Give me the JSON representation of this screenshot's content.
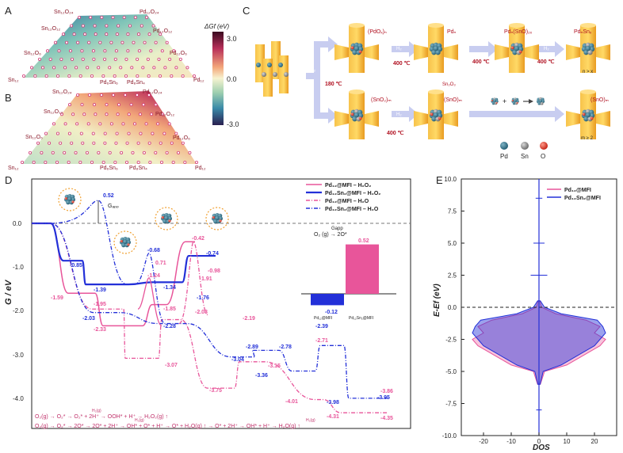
{
  "panels": {
    "A": "A",
    "B": "B",
    "C": "C",
    "D": "D",
    "E": "E"
  },
  "colors": {
    "pink": "#e8559a",
    "blue": "#2330d8",
    "pd": "#2f6f86",
    "sn": "#8a8a8a",
    "o": "#e03a2a",
    "rod": "#f4b030",
    "arrow": "#c8cdf0"
  },
  "triangleA": {
    "labels": [
      "Sn₁₂O₂₄",
      "Pd₁₂O₂₄",
      "Sn₁₂O₁₂",
      "Pd₁₂O₁₂",
      "Sn₁₂O₆",
      "Pd₁₂O₆",
      "Sn₁₂",
      "Pd₆Sn₆",
      "Pd₈Sn₄",
      "Pd₁₂"
    ]
  },
  "triangleB": {
    "labels": [
      "Sn₁₂O₂₄",
      "Pd₁₂O₂₄",
      "Sn₁₂O₁₂",
      "Pd₁₂O₁₂",
      "Sn₁₂O₆",
      "Pd₁₂O₆",
      "Sn₁₂",
      "Pd₆Sn₆",
      "Pd₈Sn₄",
      "Pd₁₂"
    ]
  },
  "colorbar": {
    "title": "ΔGf (eV)",
    "ticks": [
      "3.0",
      "0.0",
      "-3.0"
    ]
  },
  "schemeC": {
    "o2": "O₂",
    "t180": "180 ℃",
    "t400a": "400 ℃",
    "t400b": "400 ℃",
    "t400c": "400 ℃",
    "t400d": "400 ℃",
    "h2a": "H₂",
    "h2b": "H₂",
    "h2c": "H₂",
    "pdo": "(PdOₓ)ₙ",
    "pdn": "Pdₙ",
    "pdsno": "Pdₙ(SnO)₂ₓ",
    "pdnsnx": "PdₙSnₓ",
    "ngx": "n > x",
    "sno2": "(SnO₂)ₘ",
    "snom": "(SnO)ₘ",
    "snom2": "(SnO)ₘ",
    "sn2o3": "Sn₂O₃",
    "mge": "m ≥ 2",
    "legend": [
      "Pd",
      "Sn",
      "O"
    ]
  },
  "chart_data": [
    {
      "type": "line",
      "title": "",
      "xlabel": "",
      "ylabel": "G / eV",
      "ylim": [
        -4.5,
        0.5
      ],
      "yticks": [
        "0.0",
        "-1.0",
        "-2.0",
        "-3.0",
        "-4.0"
      ],
      "series": [
        {
          "name": "Pd₁₂@MFI – H₂O₂",
          "style": "solid",
          "color": "#e8559a",
          "values": [
            0,
            -1.59,
            -2.33,
            -1.85,
            -0.42
          ]
        },
        {
          "name": "Pd₁₂Sn₂@MFI – H₂O₂",
          "style": "solid",
          "color": "#2330d8",
          "values": [
            0,
            -0.85,
            -1.39,
            -1.34,
            -0.74
          ]
        },
        {
          "name": "Pd₁₂@MFI – H₂O",
          "style": "dashdot",
          "color": "#e8559a",
          "values": [
            0,
            -1.95,
            -3.07,
            -3.75,
            -3.15,
            -4.31,
            -4.35
          ]
        },
        {
          "name": "Pd₁₂Sn₂@MFI – H₂O",
          "style": "dashdot",
          "color": "#2330d8",
          "values": [
            0,
            -2.03,
            -2.28,
            -3.04,
            -3.36,
            -3.98,
            -3.95
          ]
        }
      ],
      "annotations": [
        "0.52",
        "-0.85",
        "-1.39",
        "-2.03",
        "-1.59",
        "-1.95",
        "-2.33",
        "-0.68",
        "0.71",
        "-1.24",
        "-1.34",
        "-1.85",
        "-2.28",
        "-1.76",
        "-2.08",
        "-0.42",
        "-0.74",
        "-0.98",
        "1.91",
        "-3.07",
        "-3.75",
        "-2.19",
        "-3.04",
        "-2.89",
        "-3.36",
        "-3.15",
        "-2.78",
        "-2.39",
        "-2.71",
        "-4.01",
        "-3.98",
        "-4.31",
        "-3.86",
        "-3.95",
        "-4.35"
      ],
      "gapp": "Gₐₚₚ",
      "inset": {
        "title": "O₂ (g) → 2O*",
        "label": "Gapp",
        "categories": [
          "Pd₁₂@MFI",
          "Pd₁₂Sn₂@MFI"
        ],
        "values": [
          -0.12,
          0.52
        ],
        "valueLabels": [
          "-0.12",
          "0.52"
        ],
        "colors": [
          "#2330d8",
          "#e8559a"
        ]
      },
      "pathway1": "O₂(g)  →   O₂*  →  O₂* + 2H⁺  →  OOH* + H⁺  →  H₂O₂(g) ↑",
      "pathway2": "O₂(g)  →   O₂*   →   2O*   →   2O* + 2H⁺ → OH* + O* + H⁺ → O* + H₂O(g) ↑ → O* + 2H⁺ → OH* + H⁺ → H₂O(g) ↑",
      "h2label1": "H₂(g)",
      "h2label2": "H₂(g)",
      "h2label3": "H₂(g)"
    },
    {
      "type": "area",
      "xlabel": "DOS",
      "ylabel": "E-Ef (eV)",
      "xlim": [
        -28,
        28
      ],
      "ylim": [
        -10,
        10
      ],
      "xticks": [
        "-20",
        "-10",
        "0",
        "10",
        "20"
      ],
      "yticks": [
        "10.0",
        "7.5",
        "5.0",
        "2.5",
        "0.0",
        "-2.5",
        "-5.0",
        "-7.5",
        "-10.0"
      ],
      "legend": [
        "Pd₁₂@MFI",
        "Pd₁₂Sn₂@MFI"
      ],
      "series": [
        {
          "name": "Pd₁₂@MFI",
          "color": "#e8559a",
          "E": [
            -6,
            -5,
            -4.5,
            -4,
            -3.5,
            -3,
            -2.5,
            -2,
            -1.5,
            -1,
            -0.5,
            0,
            0.5
          ],
          "dos": [
            0.5,
            2,
            10,
            14,
            18,
            22,
            24,
            20,
            22,
            17,
            6,
            1,
            0.3
          ]
        },
        {
          "name": "Pd₁₂Sn₂@MFI",
          "color": "#2330d8",
          "E": [
            -6,
            -5,
            -4.5,
            -4,
            -3.5,
            -3,
            -2.5,
            -2,
            -1.5,
            -1,
            -0.5,
            0,
            0.5
          ],
          "dos": [
            0.4,
            1.5,
            8,
            12,
            16,
            20,
            22,
            24,
            23,
            21,
            8,
            2,
            0.5
          ]
        }
      ]
    }
  ]
}
